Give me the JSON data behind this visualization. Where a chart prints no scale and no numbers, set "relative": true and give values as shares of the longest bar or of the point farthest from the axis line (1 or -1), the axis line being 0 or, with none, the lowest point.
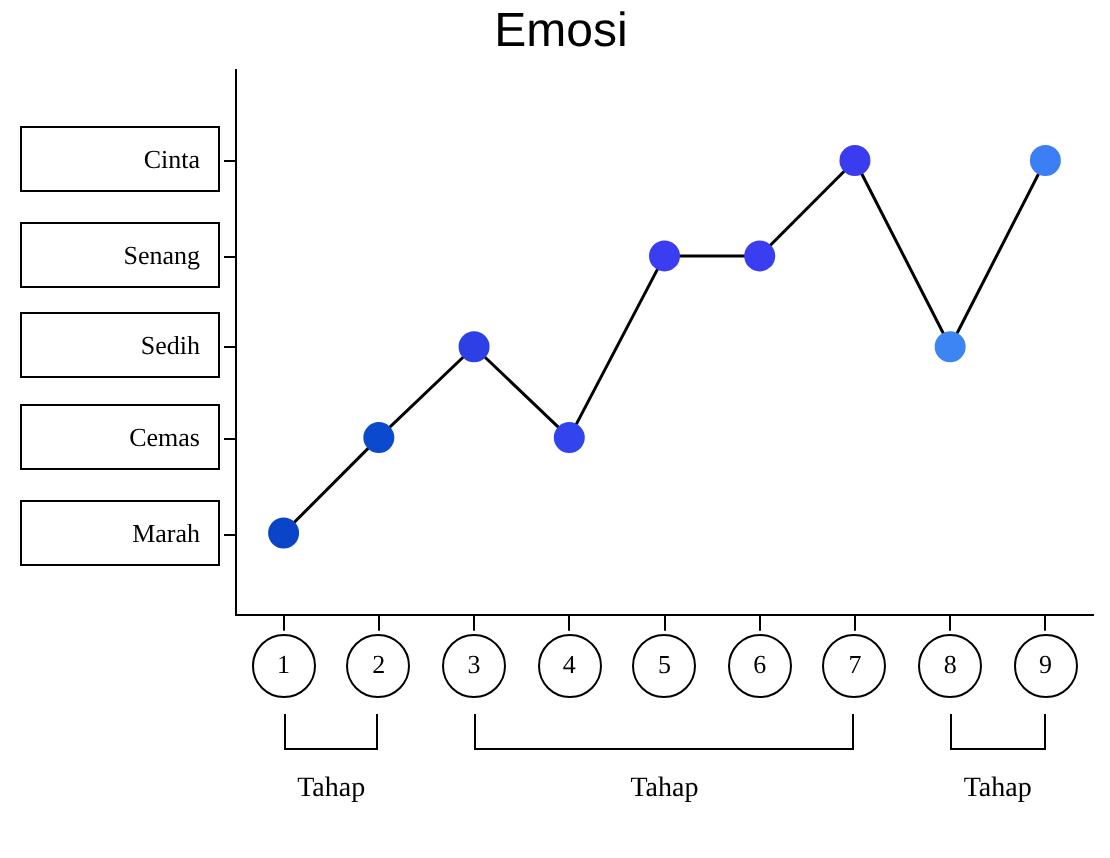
{
  "chart_data": {
    "type": "line",
    "title": "Emosi",
    "categories": [
      "1",
      "2",
      "3",
      "4",
      "5",
      "6",
      "7",
      "8",
      "9"
    ],
    "series": [
      {
        "color": "#000000",
        "colors": [
          "#0a44c8",
          "#0b49cf",
          "#2d40e6",
          "#3244ee",
          "#3a3ef0",
          "#3a3ef0",
          "#3b3cf0",
          "#3d85f2",
          "#3b7ef5"
        ],
        "values": [
          0.18,
          0.39,
          0.59,
          0.39,
          0.79,
          0.79,
          1,
          0.59,
          1
        ]
      }
    ],
    "relative": true,
    "marker": "circle",
    "grid": false,
    "annotations": [
      "Cinta",
      "Senang",
      "Sedih",
      "Cemas",
      "Marah",
      "Tahap",
      "Tahap",
      "Tahap"
    ]
  }
}
